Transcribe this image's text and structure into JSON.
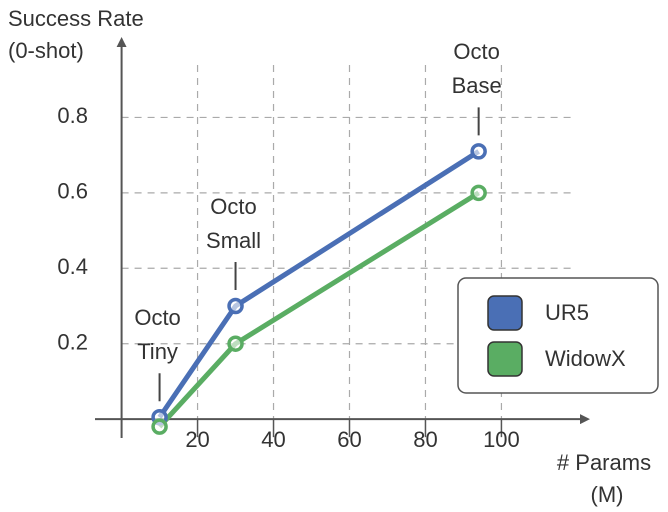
{
  "chart_data": {
    "type": "line",
    "y_label": [
      "Success Rate",
      "(0-shot)"
    ],
    "x_label": [
      "# Params",
      "(M)"
    ],
    "x": [
      10,
      30,
      94
    ],
    "series": [
      {
        "name": "UR5",
        "color": "#4a6fb5",
        "values": [
          0.005,
          0.3,
          0.71
        ]
      },
      {
        "name": "WidowX",
        "color": "#5aad63",
        "values": [
          -0.02,
          0.2,
          0.6
        ]
      }
    ],
    "annotations": [
      [
        "Octo",
        "Tiny"
      ],
      [
        "Octo",
        "Small"
      ],
      [
        "Octo",
        "Base"
      ]
    ],
    "xlim": [
      -7,
      122
    ],
    "ylim": [
      -0.05,
      1.0
    ],
    "xticks": [
      20,
      40,
      60,
      80,
      100
    ],
    "yticks": [
      0.2,
      0.4,
      0.6,
      0.8
    ],
    "grid": true,
    "legend": "lower right"
  }
}
